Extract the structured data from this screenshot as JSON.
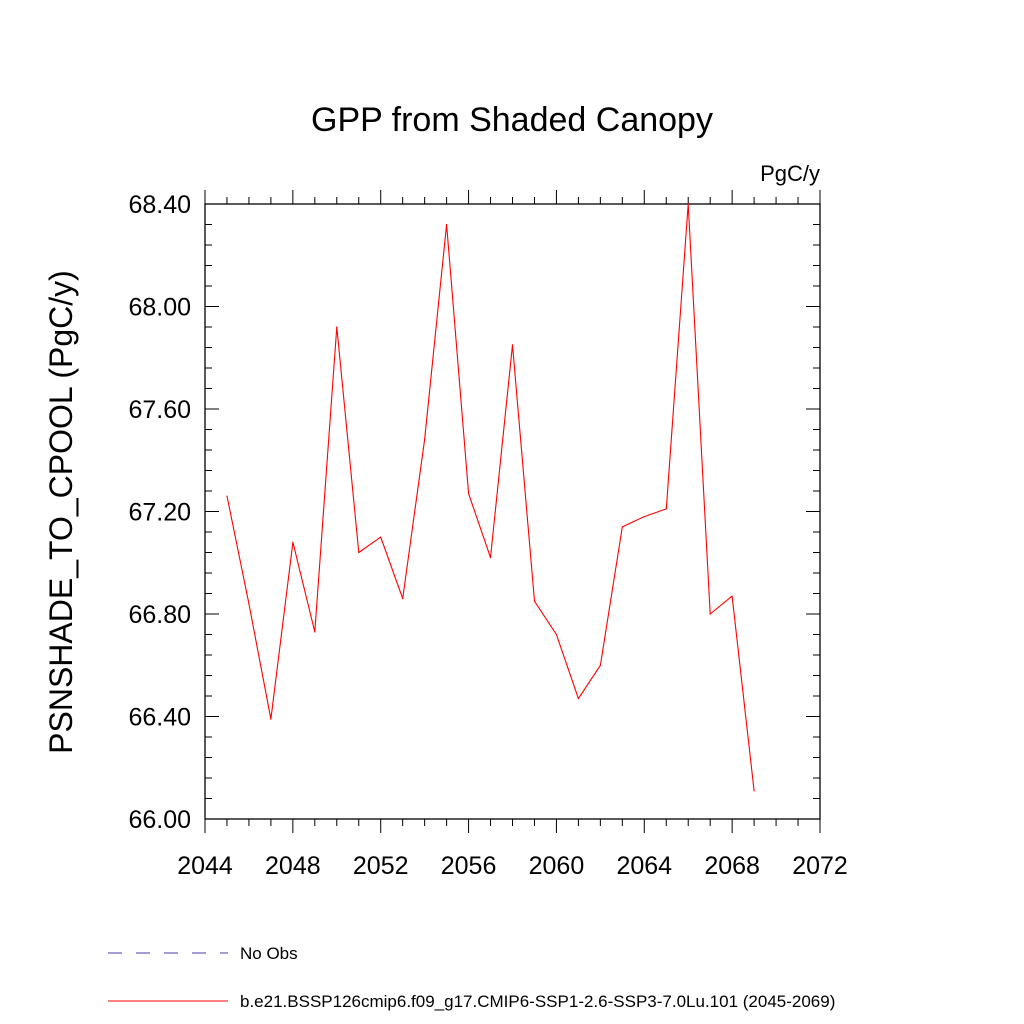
{
  "chart_data": {
    "type": "line",
    "title": "GPP from Shaded Canopy",
    "units_label": "PgC/y",
    "ylabel": "PSNSHADE_TO_CPOOL  (PgC/y)",
    "xlabel": "",
    "xlim": [
      2044,
      2072
    ],
    "ylim": [
      66.0,
      68.4
    ],
    "x_ticks": [
      "2044",
      "2048",
      "2052",
      "2056",
      "2060",
      "2064",
      "2068",
      "2072"
    ],
    "y_ticks": [
      "66.00",
      "66.40",
      "66.80",
      "67.20",
      "67.60",
      "68.00",
      "68.40"
    ],
    "grid": false,
    "legend_position": "bottom",
    "series": [
      {
        "name": "b.e21.BSSP126cmip6.f09_g17.CMIP6-SSP1-2.6-SSP3-7.0Lu.101 (2045-2069)",
        "color": "#ff0000",
        "style": "solid",
        "x": [
          2045,
          2046,
          2047,
          2048,
          2049,
          2050,
          2051,
          2052,
          2053,
          2054,
          2055,
          2056,
          2057,
          2058,
          2059,
          2060,
          2061,
          2062,
          2063,
          2064,
          2065,
          2066,
          2067,
          2068,
          2069
        ],
        "y": [
          67.26,
          66.84,
          66.39,
          67.08,
          66.73,
          67.92,
          67.04,
          67.1,
          66.86,
          67.48,
          68.32,
          67.27,
          67.02,
          67.85,
          66.85,
          66.72,
          66.47,
          66.6,
          67.14,
          67.18,
          67.21,
          68.4,
          66.8,
          66.87,
          66.11
        ]
      }
    ],
    "legend": [
      {
        "label": "No Obs",
        "color": "#4b3aa8",
        "style": "dashed"
      },
      {
        "label": "b.e21.BSSP126cmip6.f09_g17.CMIP6-SSP1-2.6-SSP3-7.0Lu.101 (2045-2069)",
        "color": "#ff0000",
        "style": "solid"
      }
    ]
  }
}
